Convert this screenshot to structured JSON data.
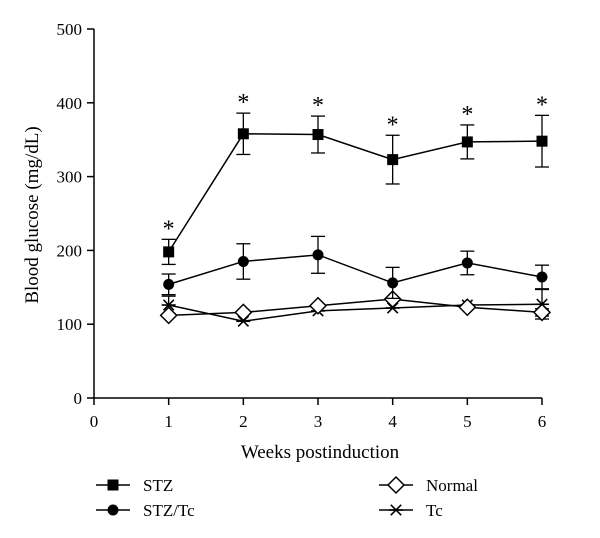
{
  "chart_data": {
    "type": "line",
    "xlabel": "Weeks postinduction",
    "ylabel": "Blood glucose (mg/dL)",
    "xlim": [
      0,
      6
    ],
    "ylim": [
      0,
      500
    ],
    "x_ticks": [
      0,
      1,
      2,
      3,
      4,
      5,
      6
    ],
    "y_ticks": [
      0,
      100,
      200,
      300,
      400,
      500
    ],
    "x": [
      1,
      2,
      3,
      4,
      5,
      6
    ],
    "grid": false,
    "legend_position": "bottom",
    "series": [
      {
        "name": "STZ",
        "marker": "filled-square",
        "values": [
          198,
          358,
          357,
          323,
          347,
          348
        ],
        "err": [
          17,
          28,
          25,
          33,
          23,
          35
        ],
        "significance": [
          "*",
          "*",
          "*",
          "*",
          "*",
          "*"
        ]
      },
      {
        "name": "STZ/Tc",
        "marker": "filled-circle",
        "values": [
          154,
          185,
          194,
          156,
          183,
          164
        ],
        "err": [
          14,
          24,
          25,
          21,
          16,
          16
        ]
      },
      {
        "name": "Normal",
        "marker": "open-diamond",
        "values": [
          112,
          116,
          125,
          134,
          123,
          116
        ],
        "err": [
          0,
          0,
          0,
          0,
          0,
          5
        ]
      },
      {
        "name": "Tc",
        "marker": "asterisk",
        "values": [
          126,
          104,
          118,
          122,
          126,
          127
        ],
        "err": [
          12,
          0,
          0,
          0,
          0,
          20
        ]
      }
    ]
  }
}
